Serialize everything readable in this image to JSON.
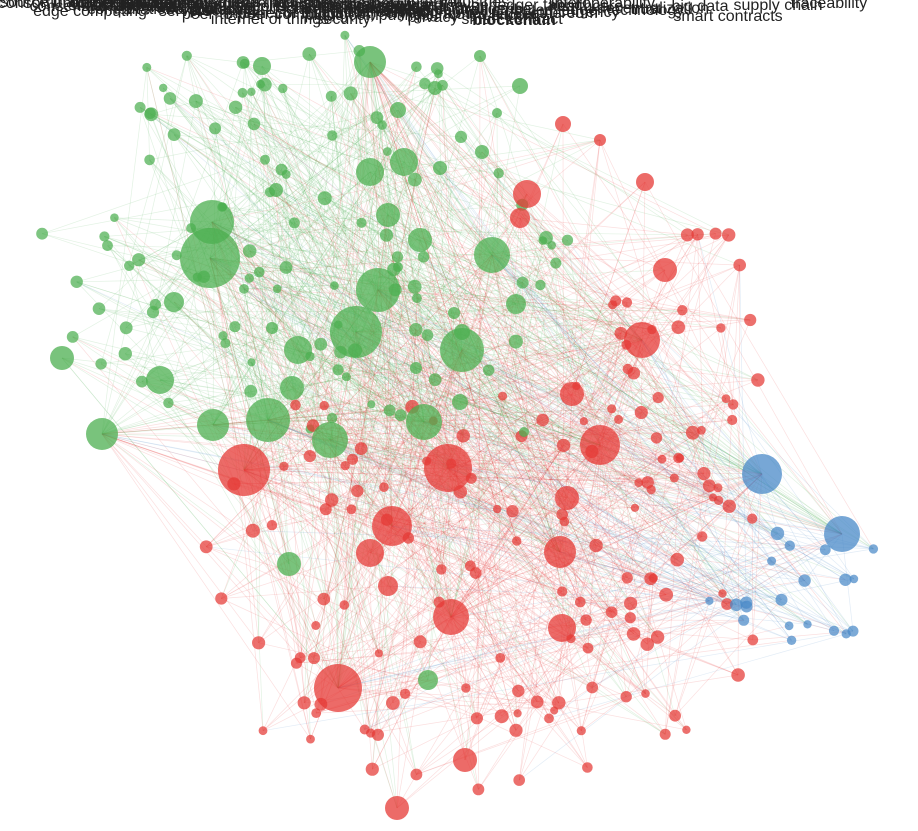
{
  "diagram": {
    "type": "keyword co-occurrence network",
    "clusters": [
      {
        "name": "",
        "color": "#4caf50"
      },
      {
        "name": "",
        "color": "#e53935"
      },
      {
        "name": "",
        "color": "#4a89c8"
      }
    ],
    "labeled_nodes": [
      {
        "label": "consortium blockchain",
        "cluster": 0
      },
      {
        "label": "resource management",
        "cluster": 0
      },
      {
        "label": "edge computing",
        "cluster": 0
      },
      {
        "label": "smart grid",
        "cluster": 0
      },
      {
        "label": "consensus algorithm",
        "cluster": 0
      },
      {
        "label": "throughput",
        "cluster": 0
      },
      {
        "label": "task analysis",
        "cluster": 0
      },
      {
        "label": "consensus protocol",
        "cluster": 1
      },
      {
        "label": "consensus mechanism",
        "cluster": 1
      },
      {
        "label": "smart grids",
        "cluster": 0
      },
      {
        "label": "computational modeling",
        "cluster": 0
      },
      {
        "label": "reliability",
        "cluster": 0
      },
      {
        "label": "servers",
        "cluster": 0
      },
      {
        "label": "fog computing",
        "cluster": 0
      },
      {
        "label": "real-time systems",
        "cluster": 1
      },
      {
        "label": "game theory",
        "cluster": 1
      },
      {
        "label": "federated learning",
        "cluster": 0
      },
      {
        "label": "protocols",
        "cluster": 0
      },
      {
        "label": "scalability",
        "cluster": 1
      },
      {
        "label": "computer architecture",
        "cluster": 0
      },
      {
        "label": "internet of things",
        "cluster": 0
      },
      {
        "label": "peer-to-peer computing",
        "cluster": 0
      },
      {
        "label": "data models",
        "cluster": 0
      },
      {
        "label": "consensus",
        "cluster": 1
      },
      {
        "label": "internet of things (iot)",
        "cluster": 0
      },
      {
        "label": "data sharing",
        "cluster": 0
      },
      {
        "label": "contracts",
        "cluster": 0
      },
      {
        "label": "costs",
        "cluster": 0
      },
      {
        "label": "industrial internet",
        "cluster": 0
      },
      {
        "label": "security",
        "cluster": 0
      },
      {
        "label": "smart cities",
        "cluster": 0
      },
      {
        "label": "data privacy",
        "cluster": 0
      },
      {
        "label": "cloud computing",
        "cluster": 0
      },
      {
        "label": "machine learning",
        "cluster": 1
      },
      {
        "label": "medical services",
        "cluster": 0
      },
      {
        "label": "smart city",
        "cluster": 0
      },
      {
        "label": "authentication",
        "cluster": 0
      },
      {
        "label": "encryption",
        "cluster": 0
      },
      {
        "label": "monitoring",
        "cluster": 0
      },
      {
        "label": "deep learning",
        "cluster": 1
      },
      {
        "label": "access control",
        "cluster": 0
      },
      {
        "label": "privacy",
        "cluster": 0
      },
      {
        "label": "cryptography",
        "cluster": 0
      },
      {
        "label": "internet",
        "cluster": 0
      },
      {
        "label": "artificial intelligence",
        "cluster": 0
      },
      {
        "label": "iot",
        "cluster": 0
      },
      {
        "label": "industries",
        "cluster": 1
      },
      {
        "label": "distributed ledger",
        "cluster": 1
      },
      {
        "label": "bitcoin",
        "cluster": 2
      },
      {
        "label": "smart contract",
        "cluster": 1
      },
      {
        "label": "blockchain",
        "cluster": 1
      },
      {
        "label": "hyperledger fabric",
        "cluster": 1
      },
      {
        "label": "cryptocurrency",
        "cluster": 2
      },
      {
        "label": "ethereum",
        "cluster": 1
      },
      {
        "label": "distributed ledger technology",
        "cluster": 1
      },
      {
        "label": "healthcare",
        "cluster": 0
      },
      {
        "label": "interoperability",
        "cluster": 1
      },
      {
        "label": "trust",
        "cluster": 1
      },
      {
        "label": "decentralization",
        "cluster": 1
      },
      {
        "label": "big data",
        "cluster": 0
      },
      {
        "label": "smart contracts",
        "cluster": 1
      },
      {
        "label": "supply chain",
        "cluster": 1
      },
      {
        "label": "traceability",
        "cluster": 1
      }
    ]
  }
}
